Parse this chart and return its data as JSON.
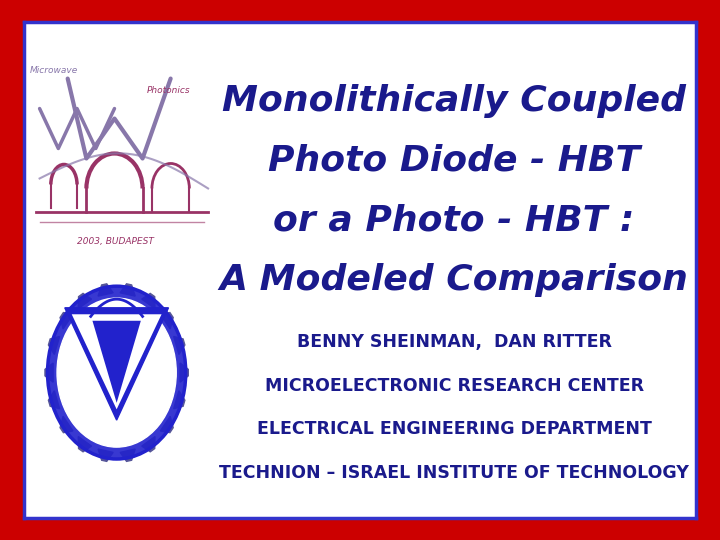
{
  "title_lines": [
    "Monolithically Coupled",
    "Photo Diode - HBT",
    "or a Photo - HBT :",
    "A Modeled Comparison"
  ],
  "subtitle_lines": [
    "BENNY SHEINMAN,  DAN RITTER",
    "MICROELECTRONIC RESEARCH CENTER",
    "ELECTRICAL ENGINEERING DEPARTMENT",
    "TECHNION – ISRAEL INSTITUTE OF TECHNOLOGY"
  ],
  "title_color": "#1a1a8c",
  "subtitle_color": "#1a1a8c",
  "background_color": "#cc0000",
  "border_inner_color": "#3333cc",
  "title_fontsize": 26,
  "subtitle_fontsize": 12.5,
  "logo_upper_color1": "#8877aa",
  "logo_upper_color2": "#993366",
  "logo_lower_color": "#2222cc"
}
